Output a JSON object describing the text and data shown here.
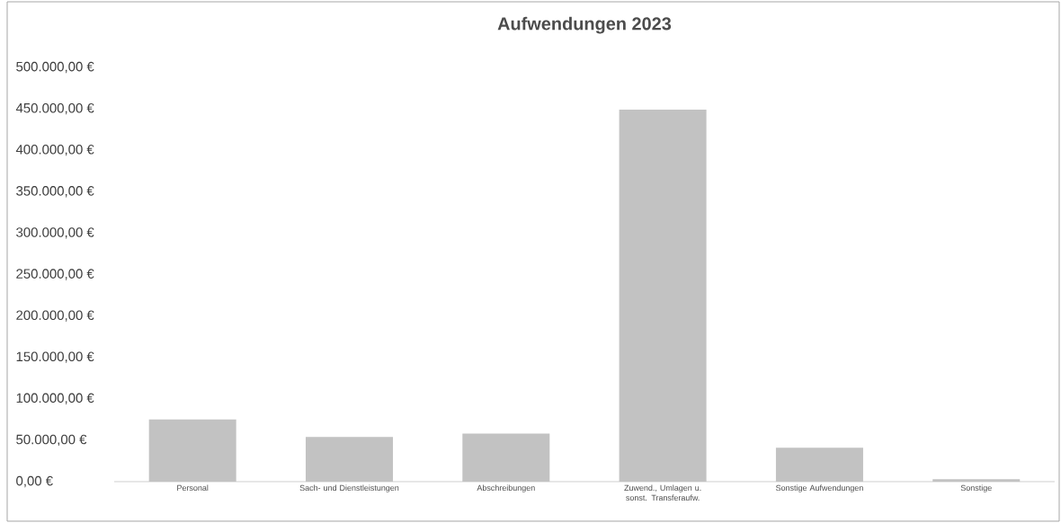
{
  "chart_data": {
    "type": "bar",
    "title": "Aufwendungen 2023",
    "categories": [
      "Personal",
      "Sach- und Dienstleistungen",
      "Abschreibungen",
      "Zuwend., Umlagen u. sonst. Transferaufw.",
      "Sonstige Aufwendungen",
      "Sonstige"
    ],
    "values": [
      75000,
      54000,
      58000,
      449000,
      41000,
      3000
    ],
    "color": "#c2c2c2",
    "ylim": [
      0,
      500000
    ],
    "yticks": [
      {
        "value": 0,
        "label": "0,00 €"
      },
      {
        "value": 50000,
        "label": "50.000,00 €"
      },
      {
        "value": 100000,
        "label": "100.000,00 €"
      },
      {
        "value": 150000,
        "label": "150.000,00 €"
      },
      {
        "value": 200000,
        "label": "200.000,00 €"
      },
      {
        "value": 250000,
        "label": "250.000,00 €"
      },
      {
        "value": 300000,
        "label": "300.000,00 €"
      },
      {
        "value": 350000,
        "label": "350.000,00 €"
      },
      {
        "value": 400000,
        "label": "400.000,00 €"
      },
      {
        "value": 450000,
        "label": "450.000,00 €"
      },
      {
        "value": 500000,
        "label": "500.000,00 €"
      }
    ]
  }
}
